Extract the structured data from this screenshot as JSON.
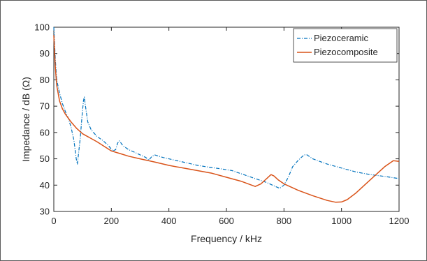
{
  "chart_data": {
    "type": "line",
    "title": "",
    "xlabel": "Frequency / kHz",
    "ylabel": "Impedance / dB (Ω)",
    "xlim": [
      0,
      1200
    ],
    "ylim": [
      30,
      100
    ],
    "xticks": [
      0,
      200,
      400,
      600,
      800,
      1000,
      1200
    ],
    "yticks": [
      30,
      40,
      50,
      60,
      70,
      80,
      90,
      100
    ],
    "grid": false,
    "legend_position": "top-right",
    "series": [
      {
        "name": "Piezoceramic",
        "color": "#0072BD",
        "style": "dash-dot",
        "points": [
          [
            0,
            100
          ],
          [
            5,
            88
          ],
          [
            10,
            80
          ],
          [
            20,
            75
          ],
          [
            30,
            71
          ],
          [
            40,
            68
          ],
          [
            50,
            65.5
          ],
          [
            60,
            62
          ],
          [
            70,
            57
          ],
          [
            78,
            50
          ],
          [
            82,
            48
          ],
          [
            86,
            52
          ],
          [
            92,
            58
          ],
          [
            98,
            66
          ],
          [
            103,
            72
          ],
          [
            106,
            73.5
          ],
          [
            110,
            70
          ],
          [
            118,
            64
          ],
          [
            130,
            61
          ],
          [
            150,
            58.5
          ],
          [
            170,
            57
          ],
          [
            190,
            55
          ],
          [
            205,
            53
          ],
          [
            215,
            53.5
          ],
          [
            222,
            56
          ],
          [
            228,
            56.8
          ],
          [
            240,
            55
          ],
          [
            260,
            53.5
          ],
          [
            280,
            52.5
          ],
          [
            300,
            51.5
          ],
          [
            320,
            50.5
          ],
          [
            330,
            49.5
          ],
          [
            340,
            50.8
          ],
          [
            350,
            51.5
          ],
          [
            380,
            50.5
          ],
          [
            420,
            49.5
          ],
          [
            460,
            48.5
          ],
          [
            500,
            47.5
          ],
          [
            540,
            46.8
          ],
          [
            580,
            46.2
          ],
          [
            620,
            45.5
          ],
          [
            660,
            44
          ],
          [
            700,
            42.5
          ],
          [
            740,
            41
          ],
          [
            770,
            39.5
          ],
          [
            785,
            38.8
          ],
          [
            800,
            40
          ],
          [
            815,
            43
          ],
          [
            830,
            47
          ],
          [
            850,
            49.5
          ],
          [
            870,
            51.5
          ],
          [
            880,
            51.5
          ],
          [
            900,
            50
          ],
          [
            950,
            48
          ],
          [
            1000,
            46.5
          ],
          [
            1050,
            45
          ],
          [
            1100,
            44
          ],
          [
            1150,
            43.3
          ],
          [
            1200,
            42.5
          ]
        ]
      },
      {
        "name": "Piezocomposite",
        "color": "#D95319",
        "style": "solid",
        "points": [
          [
            0,
            97
          ],
          [
            5,
            85
          ],
          [
            10,
            78
          ],
          [
            20,
            72
          ],
          [
            30,
            69
          ],
          [
            40,
            67
          ],
          [
            60,
            64
          ],
          [
            80,
            61.5
          ],
          [
            100,
            59.5
          ],
          [
            150,
            56.5
          ],
          [
            200,
            53
          ],
          [
            230,
            52
          ],
          [
            260,
            51
          ],
          [
            300,
            50
          ],
          [
            350,
            48.8
          ],
          [
            400,
            47.5
          ],
          [
            450,
            46.5
          ],
          [
            500,
            45.5
          ],
          [
            550,
            44.5
          ],
          [
            600,
            43
          ],
          [
            650,
            41.5
          ],
          [
            700,
            39.5
          ],
          [
            720,
            40.5
          ],
          [
            740,
            42.5
          ],
          [
            755,
            44
          ],
          [
            765,
            43.5
          ],
          [
            780,
            42
          ],
          [
            800,
            40.5
          ],
          [
            850,
            38
          ],
          [
            900,
            36
          ],
          [
            950,
            34.2
          ],
          [
            980,
            33.5
          ],
          [
            1000,
            33.6
          ],
          [
            1020,
            34.5
          ],
          [
            1050,
            37
          ],
          [
            1100,
            42
          ],
          [
            1150,
            47
          ],
          [
            1180,
            49.3
          ],
          [
            1200,
            49
          ]
        ]
      }
    ]
  }
}
